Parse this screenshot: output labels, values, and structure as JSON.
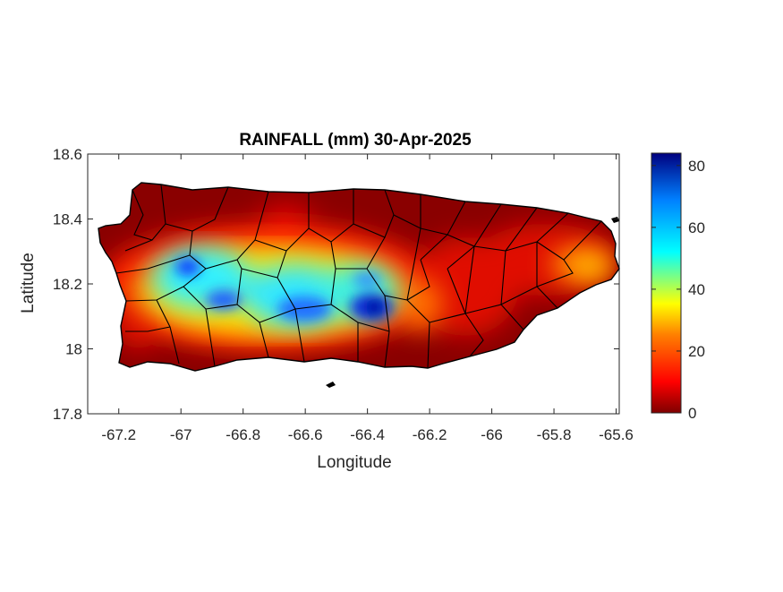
{
  "figure": {
    "title": "RAINFALL (mm) 30-Apr-2025",
    "xlabel": "Longitude",
    "ylabel": "Latitude",
    "xticks": [
      "-67.2",
      "-67",
      "-66.8",
      "-66.6",
      "-66.4",
      "-66.2",
      "-66",
      "-65.8",
      "-65.6"
    ],
    "yticks": [
      "18.6",
      "18.4",
      "18.2",
      "18",
      "17.8"
    ],
    "colorbar_ticks": [
      "80",
      "60",
      "40",
      "20",
      "0"
    ],
    "colormap": [
      "#7f0000",
      "#ff0000",
      "#ff7f00",
      "#ffff00",
      "#00ffff",
      "#0080ff",
      "#00007f"
    ]
  },
  "chart_data": {
    "type": "heatmap",
    "title": "RAINFALL (mm) 30-Apr-2025",
    "xlabel": "Longitude",
    "ylabel": "Latitude",
    "xlim": [
      -67.3,
      -65.59
    ],
    "ylim": [
      17.8,
      18.6
    ],
    "clim": [
      0,
      84
    ],
    "grid": false,
    "colorbar": "right",
    "rain_cells": [
      {
        "lon": -66.93,
        "lat": 18.25,
        "value": 72
      },
      {
        "lon": -66.85,
        "lat": 18.15,
        "value": 68
      },
      {
        "lon": -66.9,
        "lat": 18.08,
        "value": 58
      },
      {
        "lon": -66.78,
        "lat": 18.19,
        "value": 55
      },
      {
        "lon": -66.68,
        "lat": 18.12,
        "value": 50
      },
      {
        "lon": -66.56,
        "lat": 18.12,
        "value": 68
      },
      {
        "lon": -66.45,
        "lat": 18.22,
        "value": 55
      },
      {
        "lon": -66.38,
        "lat": 18.13,
        "value": 84
      },
      {
        "lon": -66.29,
        "lat": 18.12,
        "value": 40
      },
      {
        "lon": -67.02,
        "lat": 18.2,
        "value": 40
      },
      {
        "lon": -65.72,
        "lat": 18.26,
        "value": 30
      },
      {
        "lon": -65.68,
        "lat": 18.35,
        "value": 15
      },
      {
        "lon": -65.95,
        "lat": 18.28,
        "value": 15
      },
      {
        "lon": -66.68,
        "lat": 18.45,
        "value": 12
      }
    ]
  }
}
